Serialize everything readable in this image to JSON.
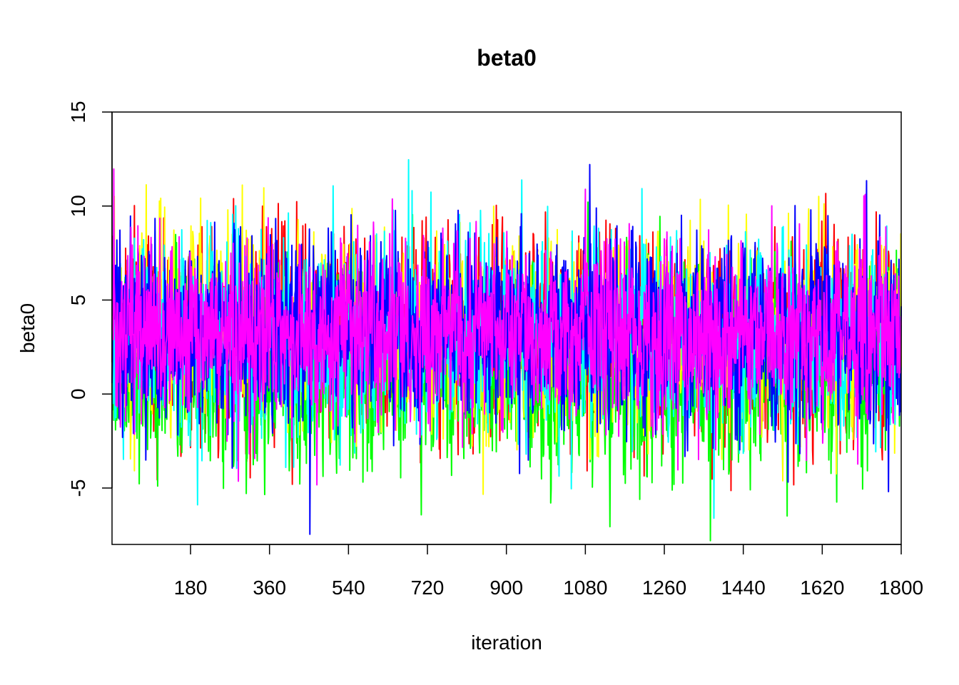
{
  "chart_data": {
    "type": "line",
    "title": "beta0",
    "xlabel": "iteration",
    "ylabel": "beta0",
    "xlim": [
      1,
      1800
    ],
    "ylim": [
      -8,
      15
    ],
    "x_ticks": [
      180,
      360,
      540,
      720,
      900,
      1080,
      1260,
      1440,
      1620,
      1800
    ],
    "y_ticks": [
      -5,
      0,
      5,
      10,
      15
    ],
    "grid": false,
    "legend": "none",
    "series": [
      {
        "color": "#ff0000",
        "mean": 3.4,
        "sd": 2.6
      },
      {
        "color": "#00ff00",
        "mean": 1.2,
        "sd": 2.6
      },
      {
        "color": "#ffff00",
        "mean": 3.2,
        "sd": 2.6
      },
      {
        "color": "#00ffff",
        "mean": 3.0,
        "sd": 2.6
      },
      {
        "color": "#0000ff",
        "mean": 3.3,
        "sd": 2.6
      },
      {
        "color": "#ff00ff",
        "mean": 3.3,
        "sd": 2.3
      }
    ]
  }
}
